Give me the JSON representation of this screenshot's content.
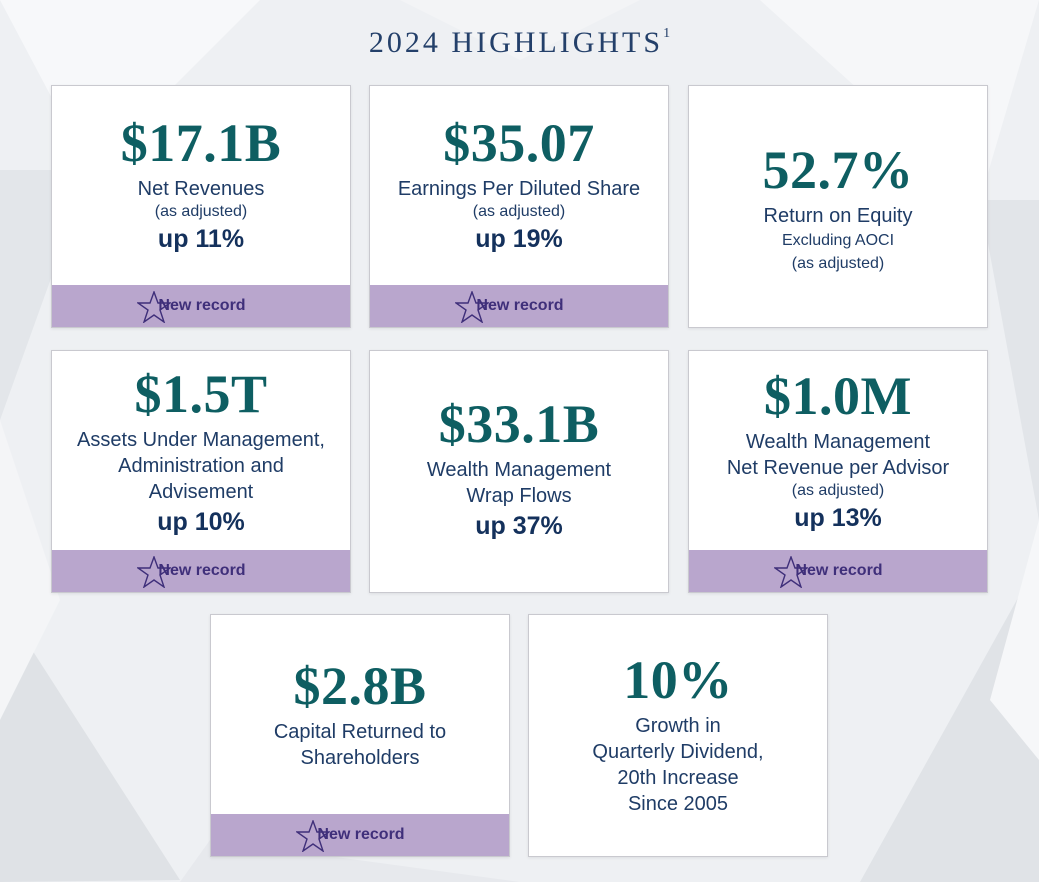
{
  "page": {
    "title": "2024 HIGHLIGHTS",
    "footnote_mark": "1"
  },
  "badge": {
    "label": "New record",
    "icon": "star-outline-icon"
  },
  "colors": {
    "value": "#0e5e62",
    "text": "#1f3c66",
    "band": "#b9a6cd",
    "band_text": "#3f2f7a"
  },
  "cards": {
    "net_revenues": {
      "value": "$17.1B",
      "label": "Net Revenues",
      "sub": "(as adjusted)",
      "growth": "up 11%"
    },
    "eps": {
      "value": "$35.07",
      "label": "Earnings Per Diluted Share",
      "sub": "(as adjusted)",
      "growth": "up 19%"
    },
    "roe": {
      "value": "52.7%",
      "label": "Return on Equity",
      "sub1": "Excluding AOCI",
      "sub2": "(as adjusted)"
    },
    "assets": {
      "value": "$1.5T",
      "label1": "Assets Under Management,",
      "label2": "Administration and",
      "label3": "Advisement",
      "growth": "up 10%"
    },
    "wrap_flows": {
      "value": "$33.1B",
      "label1": "Wealth Management",
      "label2": "Wrap Flows",
      "growth": "up 37%"
    },
    "per_advisor": {
      "value": "$1.0M",
      "label1": "Wealth Management",
      "label2": "Net Revenue per Advisor",
      "sub": "(as adjusted)",
      "growth": "up 13%"
    },
    "capital": {
      "value": "$2.8B",
      "label1": "Capital Returned to",
      "label2": "Shareholders"
    },
    "dividend": {
      "value": "10%",
      "label1": "Growth in",
      "label2": "Quarterly Dividend,",
      "label3": "20th Increase",
      "label4": "Since 2005"
    }
  }
}
